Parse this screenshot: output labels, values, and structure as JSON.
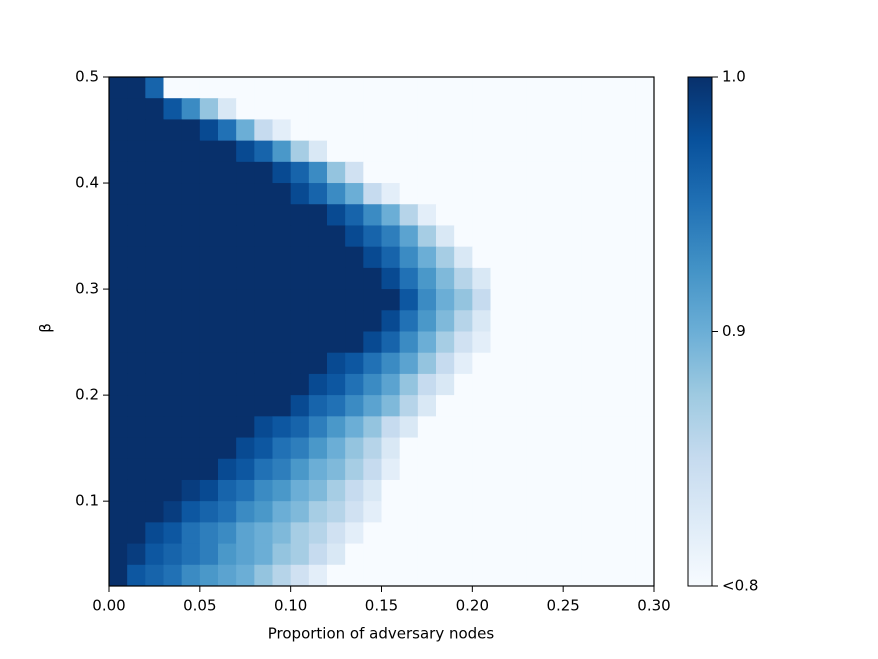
{
  "chart_data": {
    "type": "heatmap",
    "xlabel": "Proportion of adversary nodes",
    "ylabel": "β",
    "colormap": "Blues",
    "xlim": [
      0,
      0.3
    ],
    "ylim": [
      0.02,
      0.5
    ],
    "xticks": [
      {
        "value": 0,
        "label": "0.00"
      },
      {
        "value": 0.05,
        "label": "0.05"
      },
      {
        "value": 0.1,
        "label": "0.10"
      },
      {
        "value": 0.15,
        "label": "0.15"
      },
      {
        "value": 0.2,
        "label": "0.20"
      },
      {
        "value": 0.25,
        "label": "0.25"
      },
      {
        "value": 0.3,
        "label": "0.30"
      }
    ],
    "yticks": [
      0.1,
      0.2,
      0.3,
      0.4,
      0.5
    ],
    "colorbar": {
      "lim": [
        0.8,
        1.0
      ],
      "ticks": [
        {
          "value": 1.0,
          "label": "1.0"
        },
        {
          "value": 0.9,
          "label": "0.9"
        },
        {
          "value": 0.8,
          "label": "<0.8"
        }
      ]
    },
    "x": [
      0.005,
      0.015,
      0.025,
      0.035,
      0.045,
      0.055,
      0.065,
      0.075,
      0.085,
      0.095,
      0.105,
      0.115,
      0.125,
      0.135,
      0.145,
      0.155,
      0.165,
      0.175,
      0.185,
      0.195,
      0.205,
      0.215,
      0.225,
      0.235,
      0.245,
      0.255,
      0.265,
      0.275,
      0.285,
      0.295
    ],
    "y": [
      0.49,
      0.47,
      0.45,
      0.43,
      0.41,
      0.39,
      0.37,
      0.35,
      0.33,
      0.31,
      0.29,
      0.27,
      0.25,
      0.23,
      0.21,
      0.19,
      0.17,
      0.15,
      0.13,
      0.11,
      0.09,
      0.07,
      0.05,
      0.03
    ],
    "z": [
      [
        1,
        1,
        0.96,
        0.8,
        0.8,
        0.8,
        0.8,
        0.8,
        0.8,
        0.8,
        0.8,
        0.8,
        0.8,
        0.8,
        0.8,
        0.8,
        0.8,
        0.8,
        0.8,
        0.8,
        0.8,
        0.8,
        0.8,
        0.8,
        0.8,
        0.8,
        0.8,
        0.8,
        0.8,
        0.8
      ],
      [
        1,
        1,
        1,
        0.97,
        0.93,
        0.88,
        0.83,
        0.8,
        0.8,
        0.8,
        0.8,
        0.8,
        0.8,
        0.8,
        0.8,
        0.8,
        0.8,
        0.8,
        0.8,
        0.8,
        0.8,
        0.8,
        0.8,
        0.8,
        0.8,
        0.8,
        0.8,
        0.8,
        0.8,
        0.8
      ],
      [
        1,
        1,
        1,
        1,
        1,
        0.98,
        0.95,
        0.9,
        0.85,
        0.82,
        0.8,
        0.8,
        0.8,
        0.8,
        0.8,
        0.8,
        0.8,
        0.8,
        0.8,
        0.8,
        0.8,
        0.8,
        0.8,
        0.8,
        0.8,
        0.8,
        0.8,
        0.8,
        0.8,
        0.8
      ],
      [
        1,
        1,
        1,
        1,
        1,
        1,
        1,
        0.98,
        0.96,
        0.92,
        0.87,
        0.83,
        0.8,
        0.8,
        0.8,
        0.8,
        0.8,
        0.8,
        0.8,
        0.8,
        0.8,
        0.8,
        0.8,
        0.8,
        0.8,
        0.8,
        0.8,
        0.8,
        0.8,
        0.8
      ],
      [
        1,
        1,
        1,
        1,
        1,
        1,
        1,
        1,
        1,
        0.98,
        0.96,
        0.93,
        0.88,
        0.84,
        0.8,
        0.8,
        0.8,
        0.8,
        0.8,
        0.8,
        0.8,
        0.8,
        0.8,
        0.8,
        0.8,
        0.8,
        0.8,
        0.8,
        0.8,
        0.8
      ],
      [
        1,
        1,
        1,
        1,
        1,
        1,
        1,
        1,
        1,
        1,
        0.98,
        0.96,
        0.93,
        0.9,
        0.85,
        0.82,
        0.8,
        0.8,
        0.8,
        0.8,
        0.8,
        0.8,
        0.8,
        0.8,
        0.8,
        0.8,
        0.8,
        0.8,
        0.8,
        0.8
      ],
      [
        1,
        1,
        1,
        1,
        1,
        1,
        1,
        1,
        1,
        1,
        1,
        1,
        0.98,
        0.96,
        0.93,
        0.9,
        0.86,
        0.82,
        0.8,
        0.8,
        0.8,
        0.8,
        0.8,
        0.8,
        0.8,
        0.8,
        0.8,
        0.8,
        0.8,
        0.8
      ],
      [
        1,
        1,
        1,
        1,
        1,
        1,
        1,
        1,
        1,
        1,
        1,
        1,
        1,
        0.98,
        0.96,
        0.94,
        0.91,
        0.87,
        0.83,
        0.8,
        0.8,
        0.8,
        0.8,
        0.8,
        0.8,
        0.8,
        0.8,
        0.8,
        0.8,
        0.8
      ],
      [
        1,
        1,
        1,
        1,
        1,
        1,
        1,
        1,
        1,
        1,
        1,
        1,
        1,
        1,
        0.98,
        0.96,
        0.93,
        0.9,
        0.87,
        0.83,
        0.8,
        0.8,
        0.8,
        0.8,
        0.8,
        0.8,
        0.8,
        0.8,
        0.8,
        0.8
      ],
      [
        1,
        1,
        1,
        1,
        1,
        1,
        1,
        1,
        1,
        1,
        1,
        1,
        1,
        1,
        1,
        0.98,
        0.95,
        0.92,
        0.89,
        0.86,
        0.83,
        0.8,
        0.8,
        0.8,
        0.8,
        0.8,
        0.8,
        0.8,
        0.8,
        0.8
      ],
      [
        1,
        1,
        1,
        1,
        1,
        1,
        1,
        1,
        1,
        1,
        1,
        1,
        1,
        1,
        1,
        1,
        0.97,
        0.93,
        0.9,
        0.88,
        0.85,
        0.8,
        0.8,
        0.8,
        0.8,
        0.8,
        0.8,
        0.8,
        0.8,
        0.8
      ],
      [
        1,
        1,
        1,
        1,
        1,
        1,
        1,
        1,
        1,
        1,
        1,
        1,
        1,
        1,
        1,
        0.98,
        0.95,
        0.92,
        0.89,
        0.86,
        0.83,
        0.8,
        0.8,
        0.8,
        0.8,
        0.8,
        0.8,
        0.8,
        0.8,
        0.8
      ],
      [
        1,
        1,
        1,
        1,
        1,
        1,
        1,
        1,
        1,
        1,
        1,
        1,
        1,
        1,
        0.98,
        0.96,
        0.93,
        0.9,
        0.87,
        0.84,
        0.82,
        0.8,
        0.8,
        0.8,
        0.8,
        0.8,
        0.8,
        0.8,
        0.8,
        0.8
      ],
      [
        1,
        1,
        1,
        1,
        1,
        1,
        1,
        1,
        1,
        1,
        1,
        1,
        0.98,
        0.97,
        0.95,
        0.93,
        0.91,
        0.88,
        0.85,
        0.82,
        0.8,
        0.8,
        0.8,
        0.8,
        0.8,
        0.8,
        0.8,
        0.8,
        0.8,
        0.8
      ],
      [
        1,
        1,
        1,
        1,
        1,
        1,
        1,
        1,
        1,
        1,
        1,
        0.98,
        0.97,
        0.95,
        0.93,
        0.91,
        0.88,
        0.85,
        0.83,
        0.8,
        0.8,
        0.8,
        0.8,
        0.8,
        0.8,
        0.8,
        0.8,
        0.8,
        0.8,
        0.8
      ],
      [
        1,
        1,
        1,
        1,
        1,
        1,
        1,
        1,
        1,
        1,
        0.98,
        0.96,
        0.95,
        0.93,
        0.91,
        0.89,
        0.86,
        0.83,
        0.8,
        0.8,
        0.8,
        0.8,
        0.8,
        0.8,
        0.8,
        0.8,
        0.8,
        0.8,
        0.8,
        0.8
      ],
      [
        1,
        1,
        1,
        1,
        1,
        1,
        1,
        1,
        0.98,
        0.97,
        0.96,
        0.94,
        0.92,
        0.9,
        0.88,
        0.85,
        0.83,
        0.8,
        0.8,
        0.8,
        0.8,
        0.8,
        0.8,
        0.8,
        0.8,
        0.8,
        0.8,
        0.8,
        0.8,
        0.8
      ],
      [
        1,
        1,
        1,
        1,
        1,
        1,
        1,
        0.98,
        0.97,
        0.95,
        0.94,
        0.92,
        0.9,
        0.88,
        0.86,
        0.83,
        0.8,
        0.8,
        0.8,
        0.8,
        0.8,
        0.8,
        0.8,
        0.8,
        0.8,
        0.8,
        0.8,
        0.8,
        0.8,
        0.8
      ],
      [
        1,
        1,
        1,
        1,
        1,
        1,
        0.98,
        0.97,
        0.95,
        0.94,
        0.92,
        0.9,
        0.89,
        0.87,
        0.85,
        0.82,
        0.8,
        0.8,
        0.8,
        0.8,
        0.8,
        0.8,
        0.8,
        0.8,
        0.8,
        0.8,
        0.8,
        0.8,
        0.8,
        0.8
      ],
      [
        1,
        1,
        1,
        1,
        0.99,
        0.98,
        0.96,
        0.95,
        0.93,
        0.92,
        0.9,
        0.89,
        0.87,
        0.85,
        0.83,
        0.8,
        0.8,
        0.8,
        0.8,
        0.8,
        0.8,
        0.8,
        0.8,
        0.8,
        0.8,
        0.8,
        0.8,
        0.8,
        0.8,
        0.8
      ],
      [
        1,
        1,
        1,
        0.99,
        0.97,
        0.96,
        0.95,
        0.93,
        0.92,
        0.9,
        0.89,
        0.87,
        0.86,
        0.84,
        0.82,
        0.8,
        0.8,
        0.8,
        0.8,
        0.8,
        0.8,
        0.8,
        0.8,
        0.8,
        0.8,
        0.8,
        0.8,
        0.8,
        0.8,
        0.8
      ],
      [
        1,
        1,
        0.98,
        0.97,
        0.95,
        0.94,
        0.93,
        0.91,
        0.9,
        0.89,
        0.87,
        0.86,
        0.84,
        0.82,
        0.8,
        0.8,
        0.8,
        0.8,
        0.8,
        0.8,
        0.8,
        0.8,
        0.8,
        0.8,
        0.8,
        0.8,
        0.8,
        0.8,
        0.8,
        0.8
      ],
      [
        1,
        0.99,
        0.97,
        0.96,
        0.95,
        0.94,
        0.92,
        0.91,
        0.9,
        0.88,
        0.87,
        0.85,
        0.83,
        0.8,
        0.8,
        0.8,
        0.8,
        0.8,
        0.8,
        0.8,
        0.8,
        0.8,
        0.8,
        0.8,
        0.8,
        0.8,
        0.8,
        0.8,
        0.8,
        0.8
      ],
      [
        1,
        0.97,
        0.96,
        0.95,
        0.93,
        0.92,
        0.91,
        0.9,
        0.88,
        0.86,
        0.84,
        0.82,
        0.8,
        0.8,
        0.8,
        0.8,
        0.8,
        0.8,
        0.8,
        0.8,
        0.8,
        0.8,
        0.8,
        0.8,
        0.8,
        0.8,
        0.8,
        0.8,
        0.8,
        0.8
      ]
    ]
  }
}
